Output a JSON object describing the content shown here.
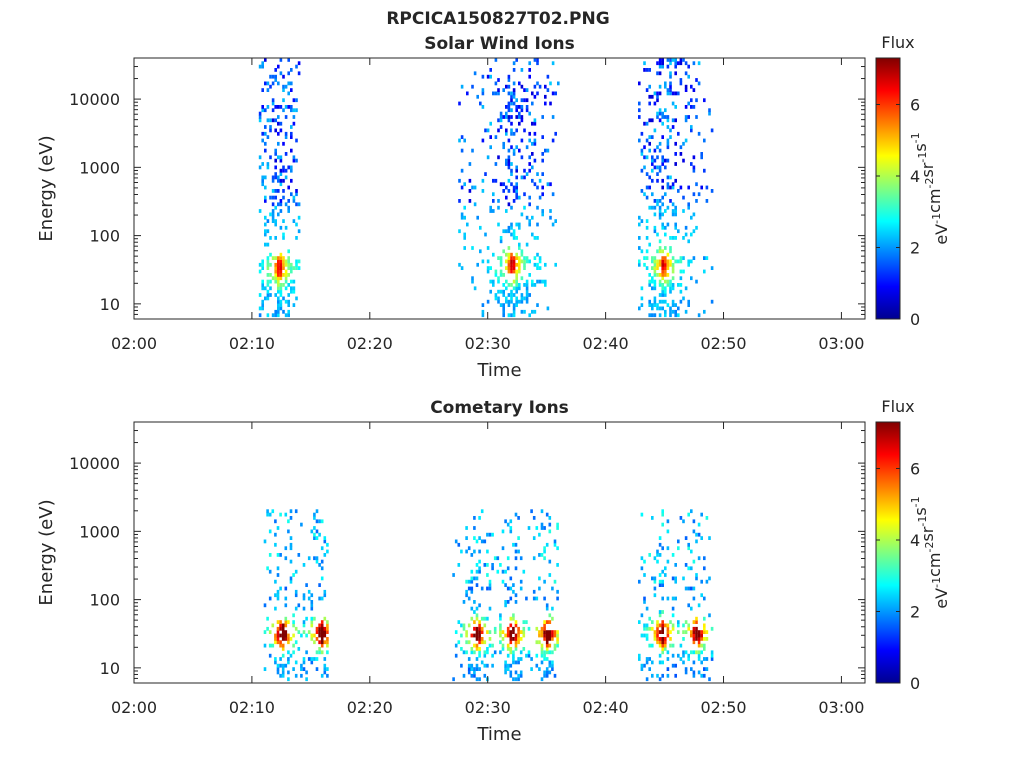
{
  "figure_title": "RPCICA150827T02.PNG",
  "chart_data": [
    {
      "type": "heatmap",
      "title": "Solar Wind Ions",
      "xlabel": "Time",
      "ylabel": "Energy (eV)",
      "xlim": [
        "02:00",
        "03:02"
      ],
      "ylim": [
        6,
        40000
      ],
      "yscale": "log",
      "xticks": [
        "02:00",
        "02:10",
        "02:20",
        "02:30",
        "02:40",
        "02:50",
        "03:00"
      ],
      "yticks": [
        {
          "value": 10,
          "label": "10"
        },
        {
          "value": 100,
          "label": "100"
        },
        {
          "value": 1000,
          "label": "1000"
        },
        {
          "value": 10000,
          "label": "10000"
        }
      ],
      "colorbar": {
        "title": "Flux",
        "label": "eV-1cm-2sr-1s-1",
        "range": [
          0,
          7.3
        ],
        "ticks": [
          "0",
          "2",
          "4",
          "6"
        ],
        "colormap": "jet"
      },
      "bursts": [
        {
          "start": "02:10:35",
          "end": "02:14:05",
          "flux_peak_center": "02:12:15",
          "peak_energy_eV": 32,
          "peak_flux": 5.0
        },
        {
          "start": "02:27:30",
          "end": "02:36:00",
          "flux_peak_center": "02:32:00",
          "peak_energy_eV": 35,
          "peak_flux": 5.2
        },
        {
          "start": "02:42:45",
          "end": "02:49:00",
          "flux_peak_center": "02:44:50",
          "peak_energy_eV": 35,
          "peak_flux": 5.0
        }
      ]
    },
    {
      "type": "heatmap",
      "title": "Cometary Ions",
      "xlabel": "Time",
      "ylabel": "Energy (eV)",
      "xlim": [
        "02:00",
        "03:02"
      ],
      "ylim": [
        6,
        40000
      ],
      "yscale": "log",
      "xticks": [
        "02:00",
        "02:10",
        "02:20",
        "02:30",
        "02:40",
        "02:50",
        "03:00"
      ],
      "yticks": [
        {
          "value": 10,
          "label": "10"
        },
        {
          "value": 100,
          "label": "100"
        },
        {
          "value": 1000,
          "label": "1000"
        },
        {
          "value": 10000,
          "label": "10000"
        }
      ],
      "colorbar": {
        "title": "Flux",
        "label": "eV-1cm-2sr-1s-1",
        "range": [
          0,
          7.3
        ],
        "ticks": [
          "0",
          "2",
          "4",
          "6"
        ],
        "colormap": "jet"
      },
      "bursts": [
        {
          "start": "02:11:00",
          "end": "02:16:30",
          "flux_peaks": [
            "02:12:30",
            "02:15:50"
          ],
          "peak_energy_eV": 30,
          "peak_flux": 7.0
        },
        {
          "start": "02:27:00",
          "end": "02:36:00",
          "flux_peaks": [
            "02:29:00",
            "02:32:00",
            "02:35:00"
          ],
          "peak_energy_eV": 30,
          "peak_flux": 7.0
        },
        {
          "start": "02:42:45",
          "end": "02:49:00",
          "flux_peaks": [
            "02:44:45",
            "02:47:40"
          ],
          "peak_energy_eV": 30,
          "peak_flux": 6.8
        }
      ]
    }
  ]
}
